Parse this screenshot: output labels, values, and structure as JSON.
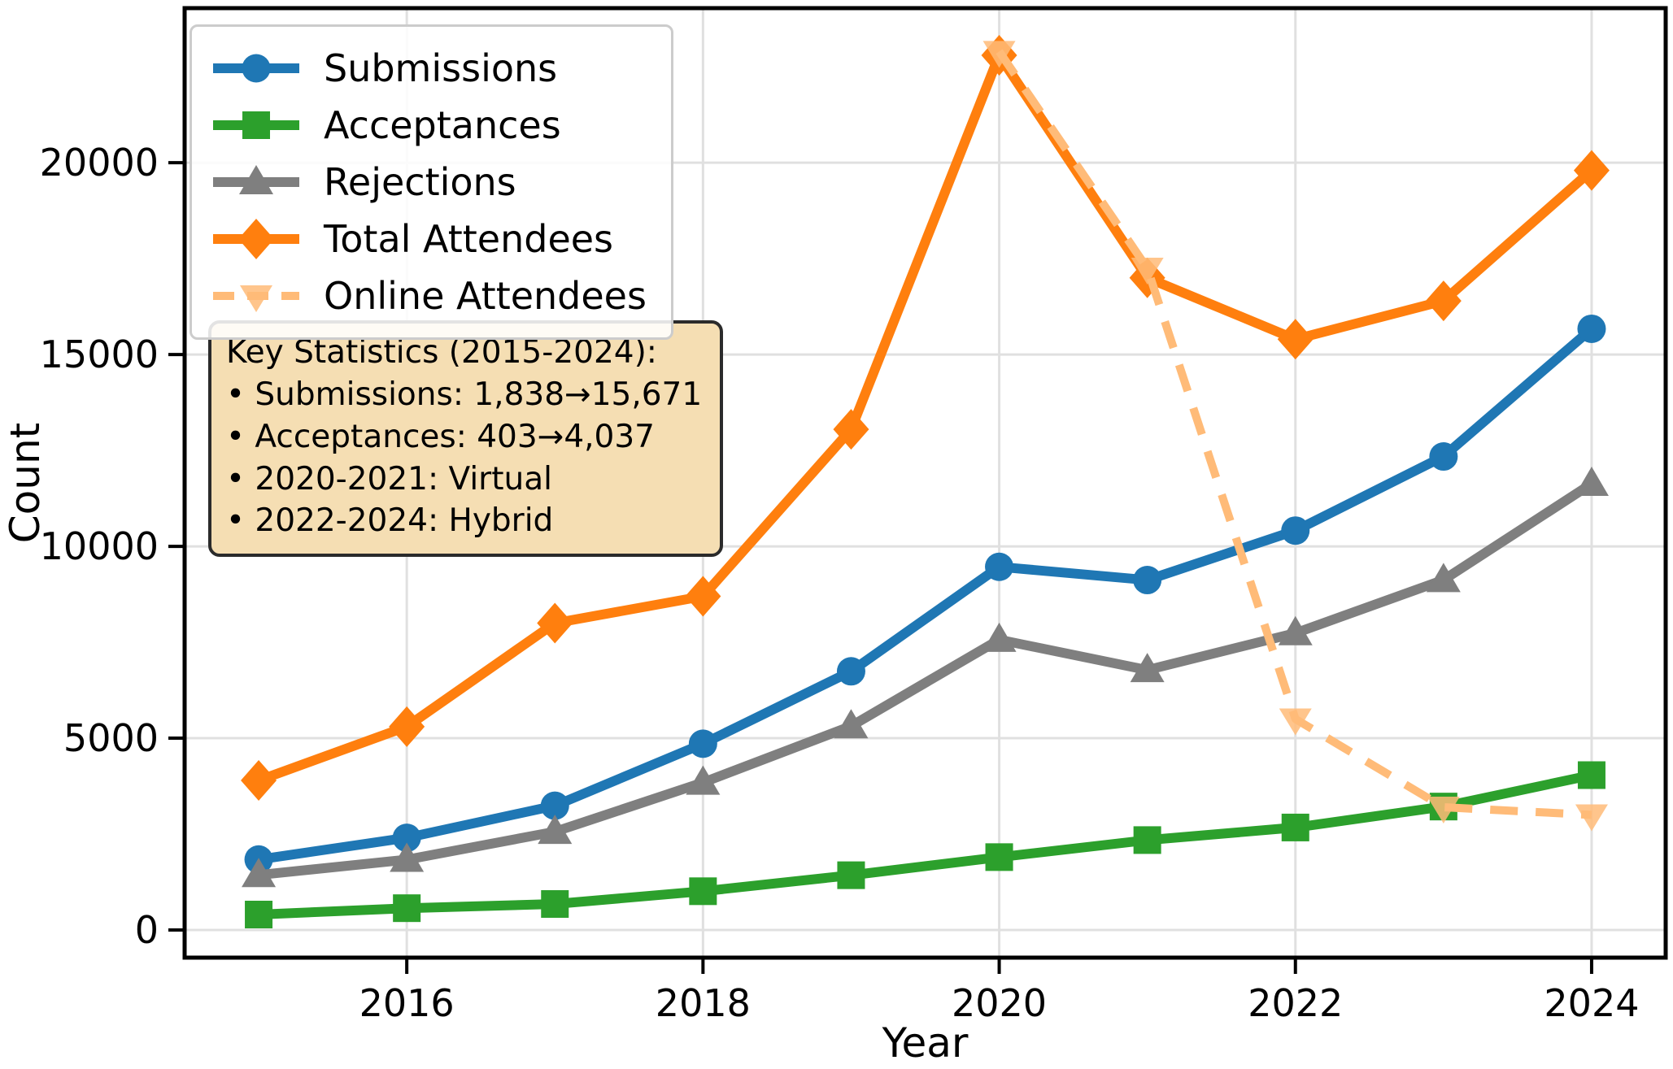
{
  "chart_data": {
    "type": "line",
    "title": "",
    "xlabel": "Year",
    "ylabel": "Count",
    "x": [
      2015,
      2016,
      2017,
      2018,
      2019,
      2020,
      2021,
      2022,
      2023,
      2024
    ],
    "xticks": [
      2016,
      2018,
      2020,
      2022,
      2024
    ],
    "yticks": [
      0,
      5000,
      10000,
      15000,
      20000
    ],
    "xlim": [
      2014.5,
      2024.5
    ],
    "ylim": [
      -720,
      24030
    ],
    "grid": true,
    "legend_position": "upper left",
    "series": [
      {
        "name": "Submissions",
        "color": "#1f77b4",
        "marker": "circle",
        "linestyle": "solid",
        "x": [
          2015,
          2016,
          2017,
          2018,
          2019,
          2020,
          2021,
          2022,
          2023,
          2024
        ],
        "values": [
          1838,
          2403,
          3240,
          4856,
          6743,
          9467,
          9122,
          10411,
          12343,
          15671
        ]
      },
      {
        "name": "Acceptances",
        "color": "#2ca02c",
        "marker": "square",
        "linestyle": "solid",
        "x": [
          2015,
          2016,
          2017,
          2018,
          2019,
          2020,
          2021,
          2022,
          2023,
          2024
        ],
        "values": [
          403,
          569,
          678,
          1011,
          1428,
          1900,
          2344,
          2672,
          3218,
          4037
        ]
      },
      {
        "name": "Rejections",
        "color": "#7f7f7f",
        "marker": "triangle-up",
        "linestyle": "solid",
        "x": [
          2015,
          2016,
          2017,
          2018,
          2019,
          2020,
          2021,
          2022,
          2023,
          2024
        ],
        "values": [
          1435,
          1834,
          2562,
          3845,
          5315,
          7567,
          6778,
          7739,
          9125,
          11634
        ]
      },
      {
        "name": "Total Attendees",
        "color": "#ff7f0e",
        "marker": "diamond",
        "linestyle": "solid",
        "x": [
          2015,
          2016,
          2017,
          2018,
          2019,
          2020,
          2021,
          2022,
          2023,
          2024
        ],
        "values": [
          3900,
          5300,
          8000,
          8700,
          13050,
          22800,
          17000,
          15400,
          16400,
          19800
        ]
      },
      {
        "name": "Online Attendees",
        "color": "#ffbb78",
        "marker": "triangle-down",
        "linestyle": "dashed",
        "x": [
          2020,
          2021,
          2022,
          2023,
          2024
        ],
        "values": [
          22900,
          17250,
          5500,
          3200,
          3000
        ]
      }
    ]
  },
  "annotation": {
    "background": "#f5deb3",
    "title": "Key Statistics (2015-2024):",
    "lines": [
      "• Submissions: 1,838→15,671",
      "• Acceptances: 403→4,037",
      "• 2020-2021: Virtual",
      "• 2022-2024: Hybrid"
    ]
  },
  "axes": {
    "xlabel": "Year",
    "ylabel": "Count"
  }
}
